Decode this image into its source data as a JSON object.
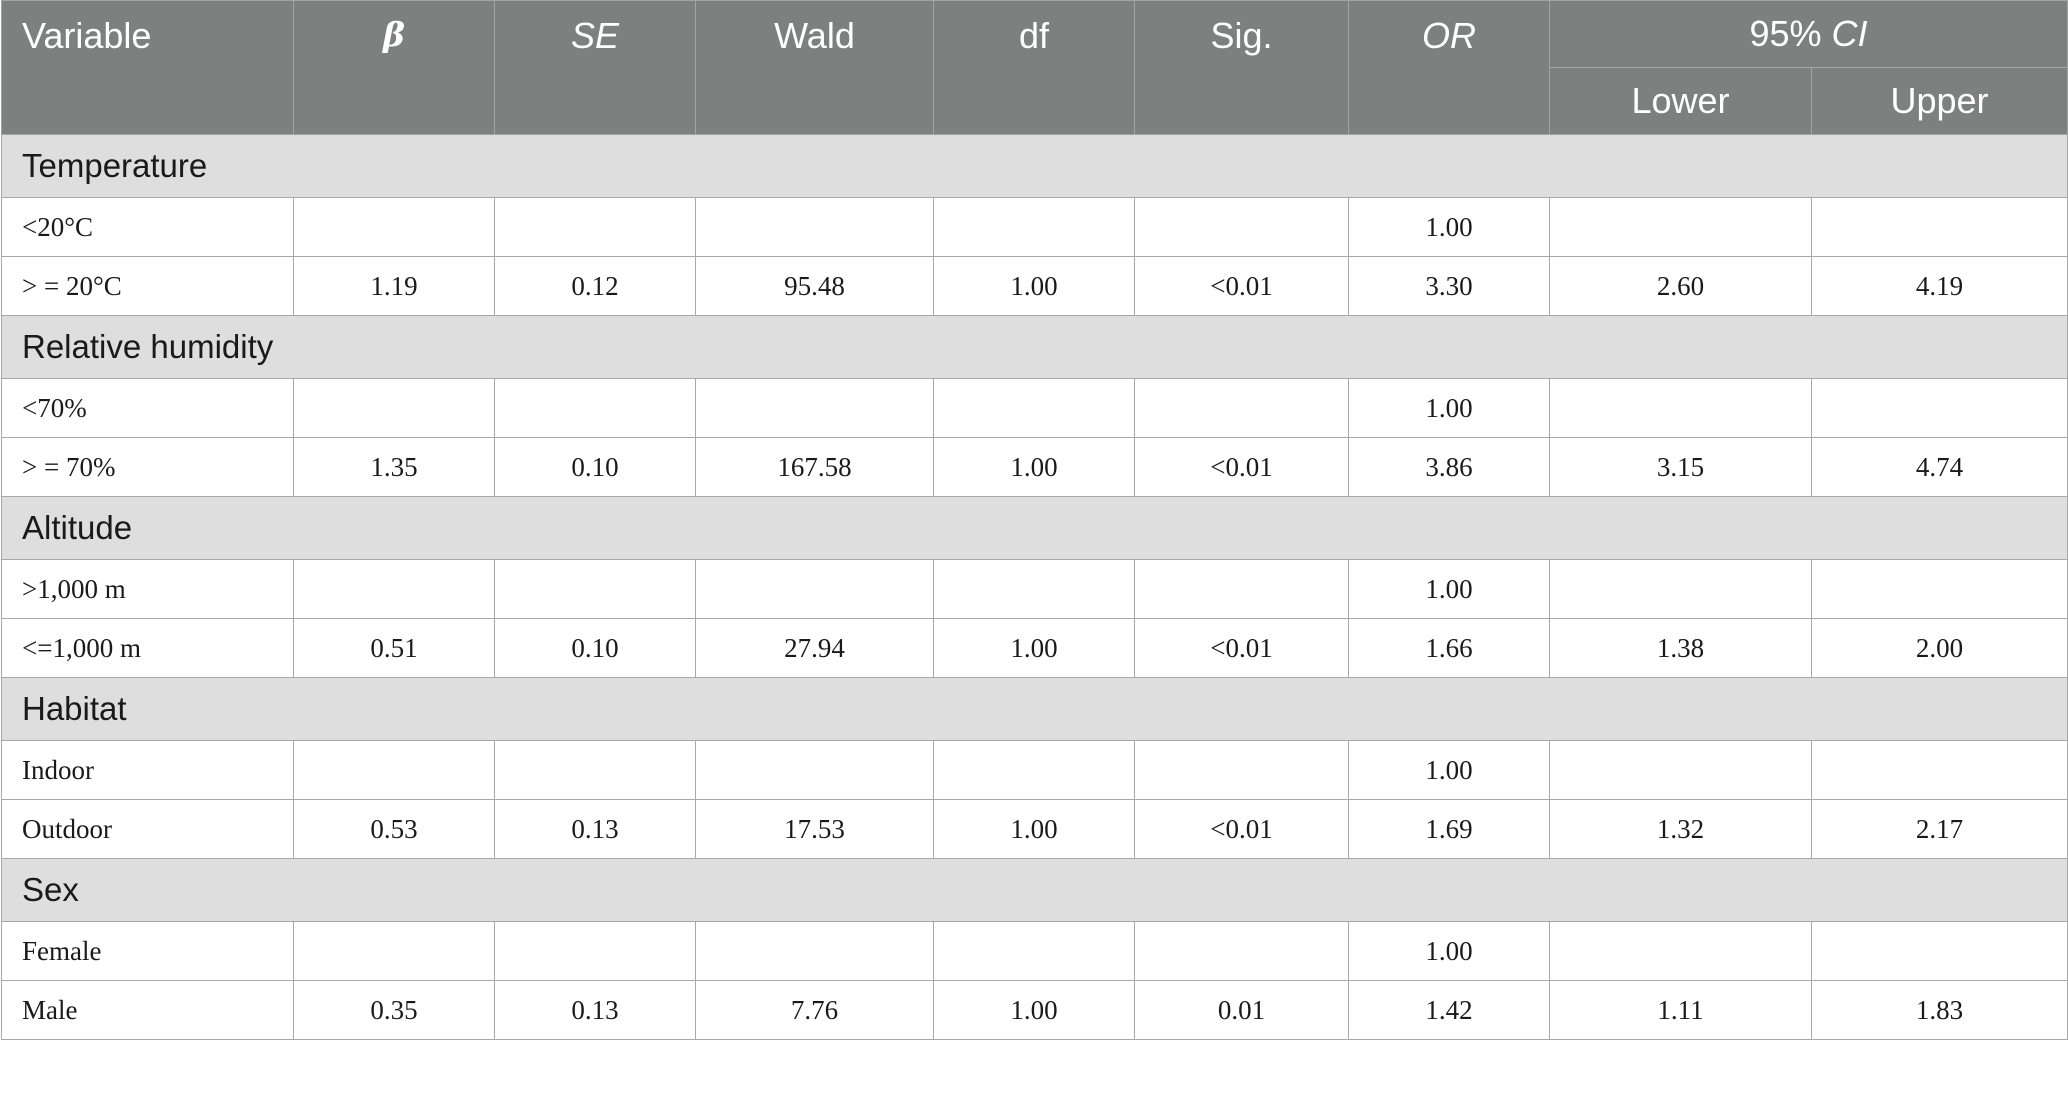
{
  "headers": {
    "variable": "Variable",
    "beta": "β",
    "se": "SE",
    "wald": "Wald",
    "df": "df",
    "sig": "Sig.",
    "or": "OR",
    "ci_prefix": "95% ",
    "ci_suffix": "CI",
    "lower": "Lower",
    "upper": "Upper"
  },
  "groups": [
    {
      "name": "Temperature",
      "rows": [
        {
          "label": "<20°C",
          "beta": "",
          "se": "",
          "wald": "",
          "df": "",
          "sig": "",
          "or": "1.00",
          "lower": "",
          "upper": ""
        },
        {
          "label": "> = 20°C",
          "beta": "1.19",
          "se": "0.12",
          "wald": "95.48",
          "df": "1.00",
          "sig": "<0.01",
          "or": "3.30",
          "lower": "2.60",
          "upper": "4.19"
        }
      ]
    },
    {
      "name": "Relative humidity",
      "rows": [
        {
          "label": "<70%",
          "beta": "",
          "se": "",
          "wald": "",
          "df": "",
          "sig": "",
          "or": "1.00",
          "lower": "",
          "upper": ""
        },
        {
          "label": "> = 70%",
          "beta": "1.35",
          "se": "0.10",
          "wald": "167.58",
          "df": "1.00",
          "sig": "<0.01",
          "or": "3.86",
          "lower": "3.15",
          "upper": "4.74"
        }
      ]
    },
    {
      "name": "Altitude",
      "rows": [
        {
          "label": ">1,000 m",
          "beta": "",
          "se": "",
          "wald": "",
          "df": "",
          "sig": "",
          "or": "1.00",
          "lower": "",
          "upper": ""
        },
        {
          "label": "<=1,000 m",
          "beta": "0.51",
          "se": "0.10",
          "wald": "27.94",
          "df": "1.00",
          "sig": "<0.01",
          "or": "1.66",
          "lower": "1.38",
          "upper": "2.00"
        }
      ]
    },
    {
      "name": "Habitat",
      "rows": [
        {
          "label": "Indoor",
          "beta": "",
          "se": "",
          "wald": "",
          "df": "",
          "sig": "",
          "or": "1.00",
          "lower": "",
          "upper": ""
        },
        {
          "label": "Outdoor",
          "beta": "0.53",
          "se": "0.13",
          "wald": "17.53",
          "df": "1.00",
          "sig": "<0.01",
          "or": "1.69",
          "lower": "1.32",
          "upper": "2.17"
        }
      ]
    },
    {
      "name": "Sex",
      "rows": [
        {
          "label": "Female",
          "beta": "",
          "se": "",
          "wald": "",
          "df": "",
          "sig": "",
          "or": "1.00",
          "lower": "",
          "upper": ""
        },
        {
          "label": "Male",
          "beta": "0.35",
          "se": "0.13",
          "wald": "7.76",
          "df": "1.00",
          "sig": "0.01",
          "or": "1.42",
          "lower": "1.11",
          "upper": "1.83"
        }
      ]
    }
  ],
  "colors": {
    "header_bg": "#7e807f",
    "group_bg": "#dfdedf",
    "border": "#a8a8a8"
  }
}
